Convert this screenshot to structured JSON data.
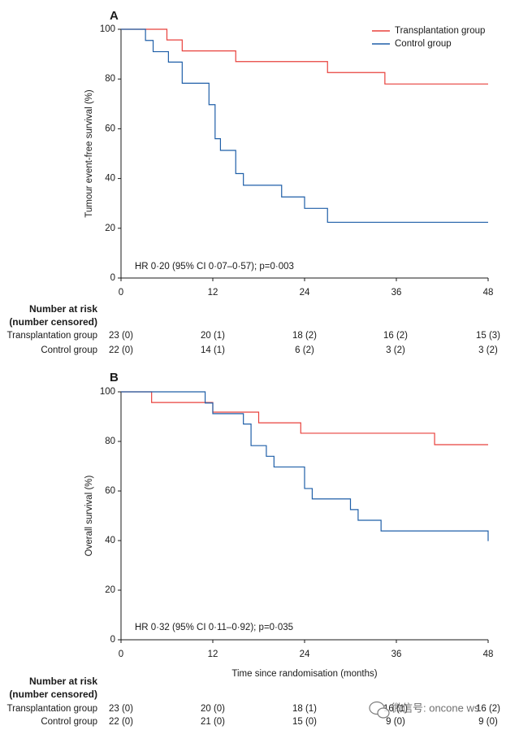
{
  "colors": {
    "transplantation": "#e8413c",
    "control": "#1f5fa8",
    "axis": "#1a1a1a"
  },
  "chart_data": [
    {
      "type": "line",
      "panel_label": "A",
      "ylabel": "Tumour event-free survival (%)",
      "xlabel": "",
      "xlim": [
        0,
        48
      ],
      "ylim": [
        0,
        100
      ],
      "x_ticks": [
        0,
        12,
        24,
        36,
        48
      ],
      "y_ticks": [
        0,
        20,
        40,
        60,
        80,
        100
      ],
      "x_tick_labels": [
        "0",
        "12",
        "24",
        "36",
        "48"
      ],
      "y_tick_labels": [
        "0",
        "20",
        "40",
        "60",
        "80",
        "100"
      ],
      "annotation": "HR 0·20 (95% CI 0·07–0·57); p=0·003",
      "legend": {
        "placement": "top-right",
        "entries": [
          "Transplantation group",
          "Control group"
        ]
      },
      "grid": false,
      "series": [
        {
          "name": "Transplantation group",
          "color_key": "transplantation",
          "x": [
            0,
            6,
            8,
            15,
            27,
            34.5,
            48
          ],
          "y": [
            100,
            95.7,
            91.3,
            87,
            82.6,
            78,
            78
          ]
        },
        {
          "name": "Control group",
          "color_key": "control",
          "x": [
            0,
            3.2,
            4.2,
            6.2,
            8,
            11.5,
            12.3,
            13,
            15,
            16,
            21,
            24,
            27,
            48
          ],
          "y": [
            100,
            95.5,
            91,
            86.8,
            78.3,
            69.7,
            56,
            51.3,
            42,
            37.3,
            32.6,
            28,
            22.4,
            22.4
          ]
        }
      ],
      "risk_table": {
        "header": [
          "Number at risk",
          "(number censored)"
        ],
        "times": [
          0,
          12,
          24,
          36,
          48
        ],
        "rows": [
          {
            "label": "Transplantation group",
            "values": [
              "23 (0)",
              "20 (1)",
              "18 (2)",
              "16 (2)",
              "15 (3)"
            ]
          },
          {
            "label": "Control group",
            "values": [
              "22 (0)",
              "14 (1)",
              "6 (2)",
              "3 (2)",
              "3 (2)"
            ]
          }
        ]
      }
    },
    {
      "type": "line",
      "panel_label": "B",
      "ylabel": "Overall survival (%)",
      "xlabel": "Time since randomisation (months)",
      "xlim": [
        0,
        48
      ],
      "ylim": [
        0,
        100
      ],
      "x_ticks": [
        0,
        12,
        24,
        36,
        48
      ],
      "y_ticks": [
        0,
        20,
        40,
        60,
        80,
        100
      ],
      "x_tick_labels": [
        "0",
        "12",
        "24",
        "36",
        "48"
      ],
      "y_tick_labels": [
        "0",
        "20",
        "40",
        "60",
        "80",
        "100"
      ],
      "annotation": "HR 0·32 (95% CI 0·11–0·92); p=0·035",
      "grid": false,
      "series": [
        {
          "name": "Transplantation group",
          "color_key": "transplantation",
          "x": [
            0,
            4,
            12,
            18,
            23.5,
            41,
            48
          ],
          "y": [
            100,
            95.7,
            91.8,
            87.5,
            83.3,
            78.7,
            78.7
          ]
        },
        {
          "name": "Control group",
          "color_key": "control",
          "x": [
            0,
            11,
            12,
            16,
            17,
            19,
            20,
            24,
            25,
            30,
            31,
            34,
            48,
            48
          ],
          "y": [
            100,
            95.5,
            91.2,
            87,
            78.3,
            74,
            69.7,
            61,
            56.8,
            52.5,
            48.2,
            43.9,
            43.9,
            39.8
          ]
        }
      ],
      "risk_table": {
        "header": [
          "Number at risk",
          "(number censored)"
        ],
        "times": [
          0,
          12,
          24,
          36,
          48
        ],
        "rows": [
          {
            "label": "Transplantation group",
            "values": [
              "23 (0)",
              "20 (0)",
              "18 (1)",
              "16 (1)",
              "16 (2)"
            ]
          },
          {
            "label": "Control group",
            "values": [
              "22 (0)",
              "21 (0)",
              "15 (0)",
              "9 (0)",
              "9 (0)"
            ]
          }
        ]
      }
    }
  ],
  "watermark": "微信号: oncone ws"
}
